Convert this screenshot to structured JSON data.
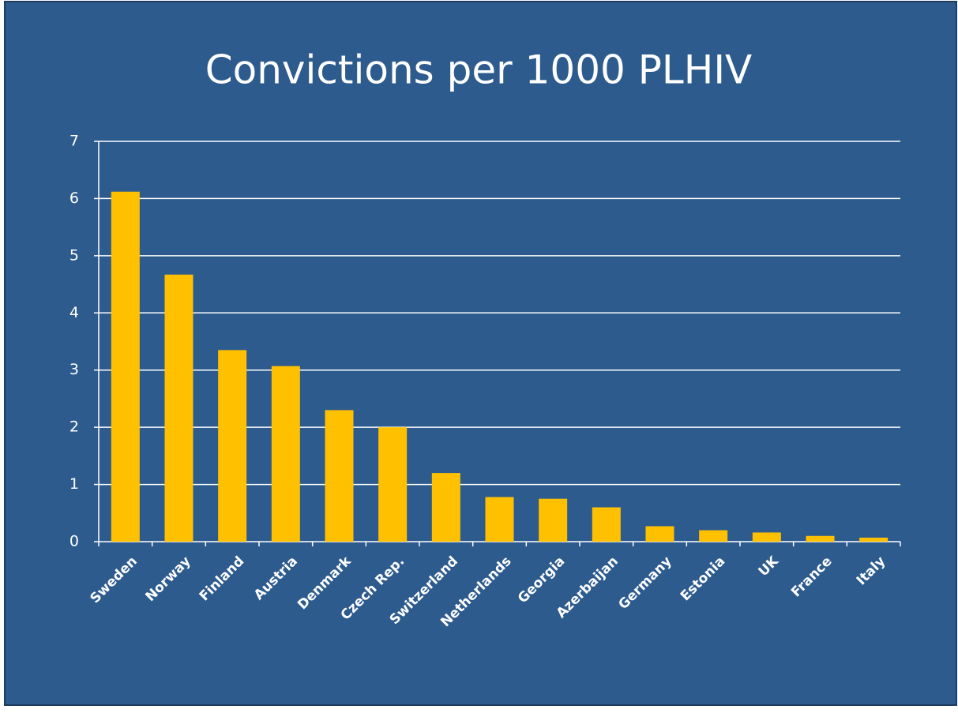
{
  "chart_data": {
    "type": "bar",
    "title": "Convictions per 1000 PLHIV",
    "categories": [
      "Sweden",
      "Norway",
      "Finland",
      "Austria",
      "Denmark",
      "Czech Rep.",
      "Switzerland",
      "Netherlands",
      "Georgia",
      "Azerbaijan",
      "Germany",
      "Estonia",
      "UK",
      "France",
      "Italy"
    ],
    "values": [
      6.12,
      4.67,
      3.35,
      3.07,
      2.3,
      2.0,
      1.2,
      0.78,
      0.75,
      0.6,
      0.27,
      0.2,
      0.16,
      0.1,
      0.07
    ],
    "color": "#ffc000",
    "ylim": [
      0,
      7
    ],
    "yticks": [
      0,
      1,
      2,
      3,
      4,
      5,
      6,
      7
    ],
    "grid": true
  }
}
